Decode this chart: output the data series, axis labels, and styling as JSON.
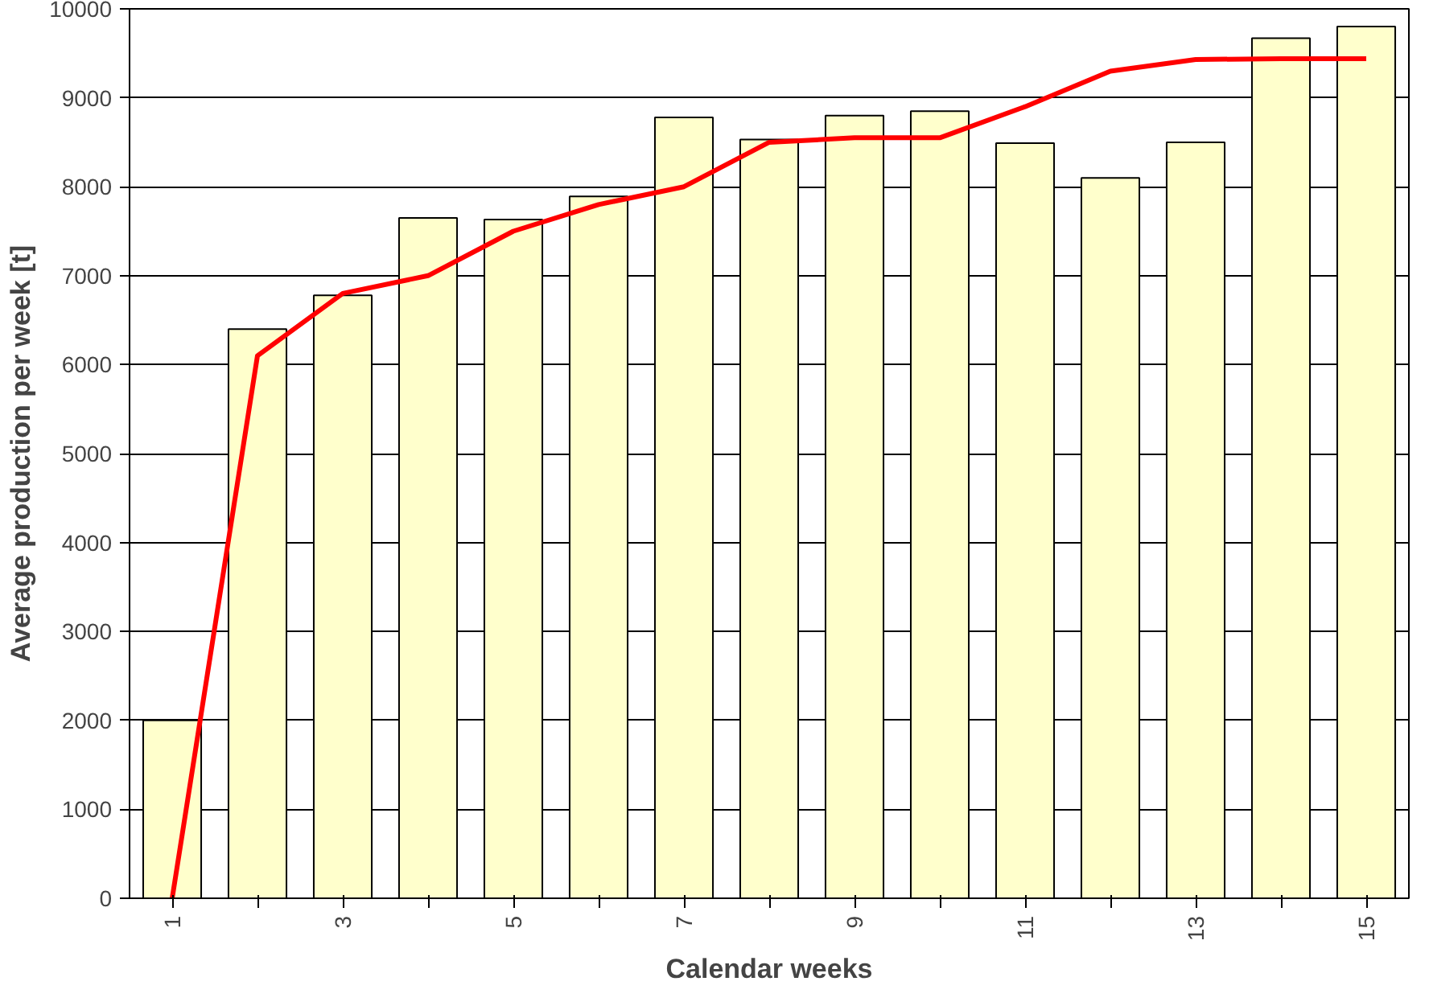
{
  "chart_data": {
    "type": "bar",
    "xlabel": "Calendar weeks",
    "ylabel": "Average production per week [t]",
    "categories": [
      "1",
      null,
      "3",
      null,
      "5",
      null,
      "7",
      null,
      "9",
      null,
      "11",
      null,
      "13",
      null,
      "15"
    ],
    "series": [
      {
        "color": "#ffffcc",
        "values": [
          2000,
          6400,
          6780,
          7650,
          7630,
          7890,
          8780,
          8530,
          8800,
          8850,
          8490,
          8100,
          8500,
          9670,
          9800
        ]
      },
      {
        "type": "line",
        "color": "#ff0000",
        "values": [
          0,
          6100,
          6800,
          7000,
          7500,
          7800,
          8000,
          8500,
          8550,
          8550,
          8900,
          9300,
          9430,
          9440,
          9440
        ]
      }
    ],
    "ylim": [
      0,
      10000
    ],
    "yticks": [
      0,
      1000,
      2000,
      3000,
      4000,
      5000,
      6000,
      7000,
      8000,
      9000,
      10000
    ],
    "grid": "y",
    "marker": "none",
    "line_style": "solid"
  }
}
